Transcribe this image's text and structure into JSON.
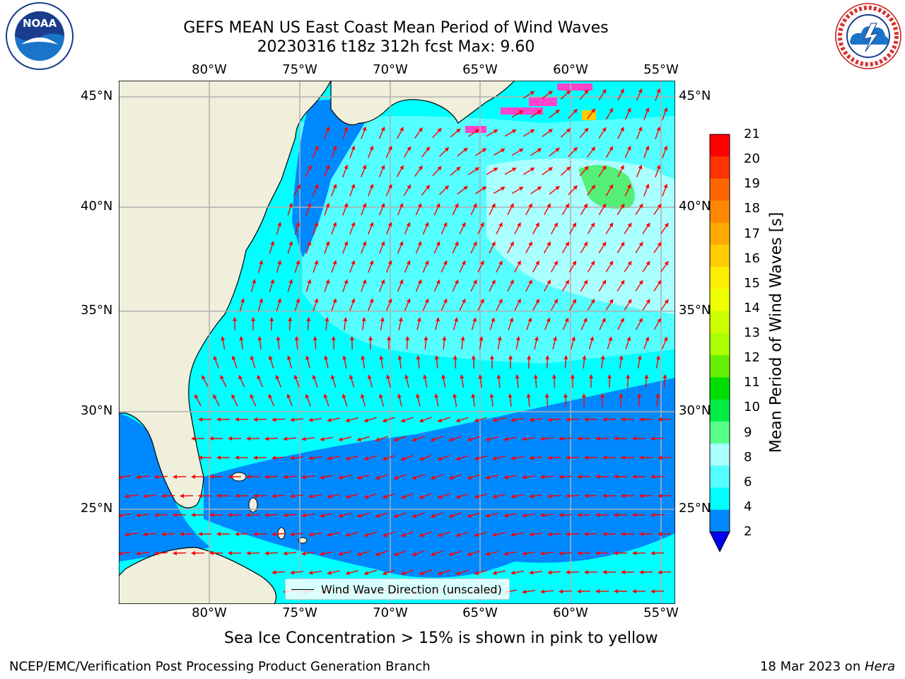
{
  "title": {
    "line1": "GEFS MEAN US East Coast Mean Period of Wind Waves",
    "line2": "20230316 t18z 312h fcst   Max: 9.60"
  },
  "lon_labels": [
    "80°W",
    "75°W",
    "70°W",
    "65°W",
    "60°W",
    "55°W"
  ],
  "lat_labels": [
    "45°N",
    "40°N",
    "35°N",
    "30°N",
    "25°N"
  ],
  "legend": {
    "label": "Wind Wave Direction (unscaled)"
  },
  "colorbar": {
    "label": "Mean Period of Wind Waves [s]",
    "ticks": [
      "21",
      "20",
      "19",
      "18",
      "17",
      "16",
      "15",
      "14",
      "13",
      "12",
      "11",
      "10",
      "9",
      "8",
      "6",
      "4",
      "2"
    ],
    "colors": [
      "#ff0000",
      "#ff3300",
      "#ff6600",
      "#ff8800",
      "#ffaa00",
      "#ffcc00",
      "#ffee00",
      "#eeff00",
      "#ccff00",
      "#aaff00",
      "#66ee00",
      "#00dd00",
      "#00ee44",
      "#55ff88",
      "#aaffff",
      "#55ffff",
      "#00ffff",
      "#0088ff",
      "#0000ee"
    ]
  },
  "subtitle": "Sea Ice Concentration > 15% is shown in pink to yellow",
  "footer": {
    "left": "NCEP/EMC/Verification Post Processing Product Generation Branch",
    "right_date": "18 Mar 2023 on ",
    "right_system": "Hera"
  },
  "logos": {
    "noaa_text": "NOAA",
    "nws_text": "NATIONAL WEATHER SERVICE"
  },
  "colors": {
    "land": "#efefdc",
    "ocean_light": "#00ffff",
    "ocean_mid": "#55ffff",
    "ocean_pale": "#aaffff",
    "ocean_dark": "#0088ff",
    "arrow": "#ff0000",
    "grid": "#b0b0b0"
  }
}
